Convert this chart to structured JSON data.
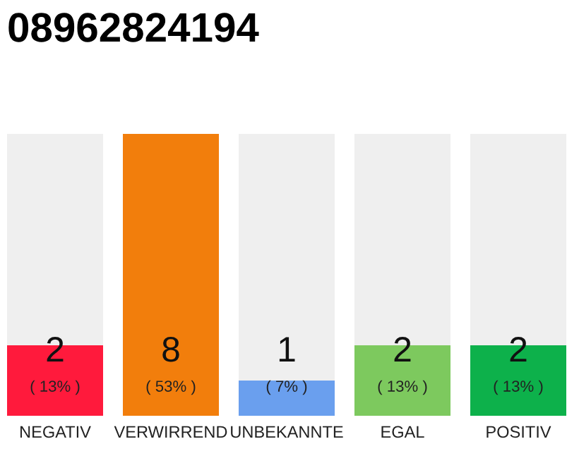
{
  "chart_data": {
    "type": "bar",
    "title": "08962824194",
    "categories": [
      "NEGATIV",
      "VERWIRREND",
      "UNBEKANNTE",
      "EGAL",
      "POSITIV"
    ],
    "values": [
      2,
      8,
      1,
      2,
      2
    ],
    "colors": [
      "#ff1a3c",
      "#f27e0c",
      "#6a9fee",
      "#7dc95e",
      "#0db14b"
    ],
    "value_labels": [
      "2\n( 13% )",
      "8\n( 53% )",
      "1\n( 7% )",
      "2\n( 13% )",
      "2\n( 13% )"
    ],
    "grid": false,
    "legend": false
  }
}
